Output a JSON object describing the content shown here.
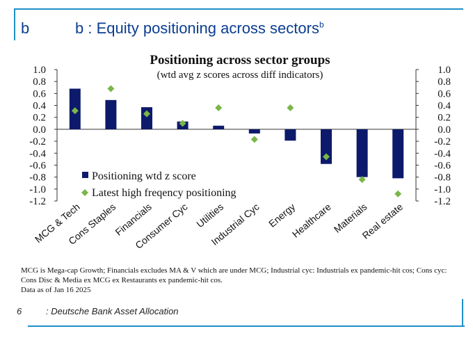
{
  "header": {
    "label": "b",
    "title": "b  : Equity positioning across sectors",
    "title_sup": "b"
  },
  "colors": {
    "frame": "#1f8fc8",
    "bar": "#0d1a6b",
    "marker": "#7ab648",
    "header_text": "#0b3d91"
  },
  "chart_data": {
    "type": "bar",
    "title": "Positioning across sector groups",
    "subtitle": "(wtd avg z scores across diff indicators)",
    "categories": [
      "MCG & Tech",
      "Cons Staples",
      "Financials",
      "Consumer Cyc",
      "Utilities",
      "Industrial Cyc",
      "Energy",
      "Healthcare",
      "Materials",
      "Real estate"
    ],
    "series": [
      {
        "name": "Positioning wtd z score",
        "kind": "bar",
        "values": [
          0.68,
          0.49,
          0.37,
          0.13,
          0.06,
          -0.07,
          -0.19,
          -0.58,
          -0.8,
          -0.82
        ]
      },
      {
        "name": "Latest high freqency positioning",
        "kind": "marker",
        "values": [
          0.31,
          0.68,
          0.26,
          0.1,
          0.36,
          -0.17,
          0.36,
          -0.46,
          -0.84,
          -1.08
        ]
      }
    ],
    "ylim": [
      -1.2,
      1.0
    ],
    "yticks": [
      "1.0",
      "0.8",
      "0.6",
      "0.4",
      "0.2",
      "0.0",
      "-0.2",
      "-0.4",
      "-0.6",
      "-0.8",
      "-1.0",
      "-1.2"
    ],
    "legend_position": "lower-left",
    "grid": false
  },
  "notes": {
    "line1": "MCG is Mega-cap Growth; Financials excludes MA & V which are under MCG;  Industrial cyc: Industrials ex pandemic-hit cos; Cons cyc: Cons Disc & Media ex MCG ex Restaurants ex pandemic-hit cos.",
    "line2": "Data as of Jan 16 2025"
  },
  "footer": {
    "page_number": "6",
    "source": ": Deutsche Bank Asset Allocation"
  }
}
